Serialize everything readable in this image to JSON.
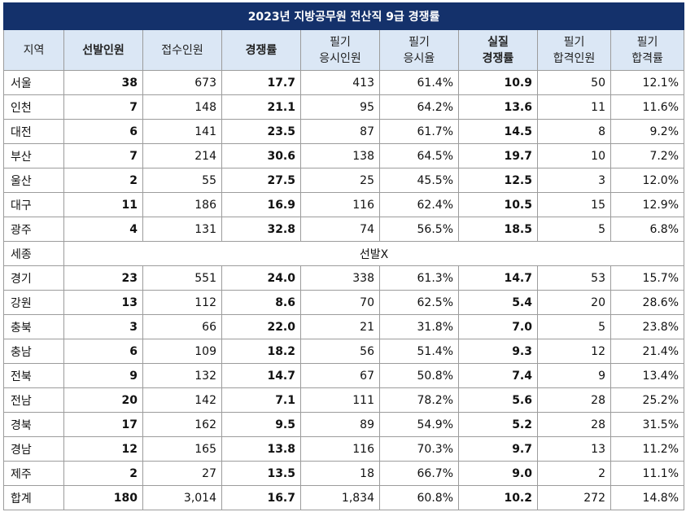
{
  "title": "2023년 지방공무원 전산직 9급 경쟁률",
  "headers": [
    {
      "line1": "지역",
      "line2": "",
      "bold": false
    },
    {
      "line1": "선발인원",
      "line2": "",
      "bold": true
    },
    {
      "line1": "접수인원",
      "line2": "",
      "bold": false
    },
    {
      "line1": "경쟁률",
      "line2": "",
      "bold": true
    },
    {
      "line1": "필기",
      "line2": "응시인원",
      "bold": false
    },
    {
      "line1": "필기",
      "line2": "응시율",
      "bold": false
    },
    {
      "line1": "실질",
      "line2": "경쟁률",
      "bold": true
    },
    {
      "line1": "필기",
      "line2": "합격인원",
      "bold": false
    },
    {
      "line1": "필기",
      "line2": "합격률",
      "bold": false
    }
  ],
  "rows": [
    {
      "region": "서울",
      "selected": "38",
      "applied": "673",
      "ratio": "17.7",
      "took": "413",
      "take_rate": "61.4%",
      "real_ratio": "10.9",
      "passed": "50",
      "pass_rate": "12.1%"
    },
    {
      "region": "인천",
      "selected": "7",
      "applied": "148",
      "ratio": "21.1",
      "took": "95",
      "take_rate": "64.2%",
      "real_ratio": "13.6",
      "passed": "11",
      "pass_rate": "11.6%"
    },
    {
      "region": "대전",
      "selected": "6",
      "applied": "141",
      "ratio": "23.5",
      "took": "87",
      "take_rate": "61.7%",
      "real_ratio": "14.5",
      "passed": "8",
      "pass_rate": "9.2%"
    },
    {
      "region": "부산",
      "selected": "7",
      "applied": "214",
      "ratio": "30.6",
      "took": "138",
      "take_rate": "64.5%",
      "real_ratio": "19.7",
      "passed": "10",
      "pass_rate": "7.2%"
    },
    {
      "region": "울산",
      "selected": "2",
      "applied": "55",
      "ratio": "27.5",
      "took": "25",
      "take_rate": "45.5%",
      "real_ratio": "12.5",
      "passed": "3",
      "pass_rate": "12.0%"
    },
    {
      "region": "대구",
      "selected": "11",
      "applied": "186",
      "ratio": "16.9",
      "took": "116",
      "take_rate": "62.4%",
      "real_ratio": "10.5",
      "passed": "15",
      "pass_rate": "12.9%"
    },
    {
      "region": "광주",
      "selected": "4",
      "applied": "131",
      "ratio": "32.8",
      "took": "74",
      "take_rate": "56.5%",
      "real_ratio": "18.5",
      "passed": "5",
      "pass_rate": "6.8%"
    },
    {
      "region": "세종",
      "note": "선발X"
    },
    {
      "region": "경기",
      "selected": "23",
      "applied": "551",
      "ratio": "24.0",
      "took": "338",
      "take_rate": "61.3%",
      "real_ratio": "14.7",
      "passed": "53",
      "pass_rate": "15.7%"
    },
    {
      "region": "강원",
      "selected": "13",
      "applied": "112",
      "ratio": "8.6",
      "took": "70",
      "take_rate": "62.5%",
      "real_ratio": "5.4",
      "passed": "20",
      "pass_rate": "28.6%"
    },
    {
      "region": "충북",
      "selected": "3",
      "applied": "66",
      "ratio": "22.0",
      "took": "21",
      "take_rate": "31.8%",
      "real_ratio": "7.0",
      "passed": "5",
      "pass_rate": "23.8%"
    },
    {
      "region": "충남",
      "selected": "6",
      "applied": "109",
      "ratio": "18.2",
      "took": "56",
      "take_rate": "51.4%",
      "real_ratio": "9.3",
      "passed": "12",
      "pass_rate": "21.4%"
    },
    {
      "region": "전북",
      "selected": "9",
      "applied": "132",
      "ratio": "14.7",
      "took": "67",
      "take_rate": "50.8%",
      "real_ratio": "7.4",
      "passed": "9",
      "pass_rate": "13.4%"
    },
    {
      "region": "전남",
      "selected": "20",
      "applied": "142",
      "ratio": "7.1",
      "took": "111",
      "take_rate": "78.2%",
      "real_ratio": "5.6",
      "passed": "28",
      "pass_rate": "25.2%"
    },
    {
      "region": "경북",
      "selected": "17",
      "applied": "162",
      "ratio": "9.5",
      "took": "89",
      "take_rate": "54.9%",
      "real_ratio": "5.2",
      "passed": "28",
      "pass_rate": "31.5%"
    },
    {
      "region": "경남",
      "selected": "12",
      "applied": "165",
      "ratio": "13.8",
      "took": "116",
      "take_rate": "70.3%",
      "real_ratio": "9.7",
      "passed": "13",
      "pass_rate": "11.2%"
    },
    {
      "region": "제주",
      "selected": "2",
      "applied": "27",
      "ratio": "13.5",
      "took": "18",
      "take_rate": "66.7%",
      "real_ratio": "9.0",
      "passed": "2",
      "pass_rate": "11.1%"
    },
    {
      "region": "합계",
      "selected": "180",
      "applied": "3,014",
      "ratio": "16.7",
      "took": "1,834",
      "take_rate": "60.8%",
      "real_ratio": "10.2",
      "passed": "272",
      "pass_rate": "14.8%"
    }
  ],
  "colors": {
    "title_bg": "#14316b",
    "title_text": "#ffffff",
    "header_bg": "#dbe7f5",
    "border": "#9c9c9c"
  }
}
